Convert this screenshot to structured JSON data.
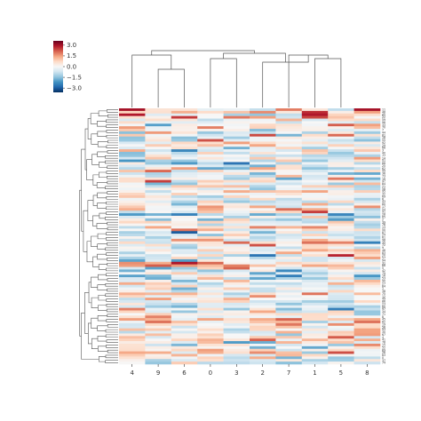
{
  "chart_data": {
    "type": "heatmap",
    "subtype": "clustermap",
    "title": "",
    "xlabel": "",
    "ylabel": "",
    "columns": [
      "4",
      "9",
      "6",
      "0",
      "3",
      "2",
      "7",
      "1",
      "5",
      "8"
    ],
    "row_count": 100,
    "colormap": "RdBu_r",
    "colorbar": {
      "ticks": [
        3.0,
        1.5,
        0.0,
        -1.5,
        -3.0
      ],
      "tick_labels": [
        "3.0",
        "1.5",
        "0.0",
        "−1.5",
        "−3.0"
      ],
      "vmin": -3.6,
      "vmax": 3.6
    },
    "row_labels_note": "100 row index labels (0-99) are printed at the right edge and are too small to read; shown as tiny placeholders",
    "row_dendrogram": true,
    "col_dendrogram": true,
    "values_seed": 20240601,
    "values_note": "cell values are approximated; individual values are not legible at this resolution"
  }
}
